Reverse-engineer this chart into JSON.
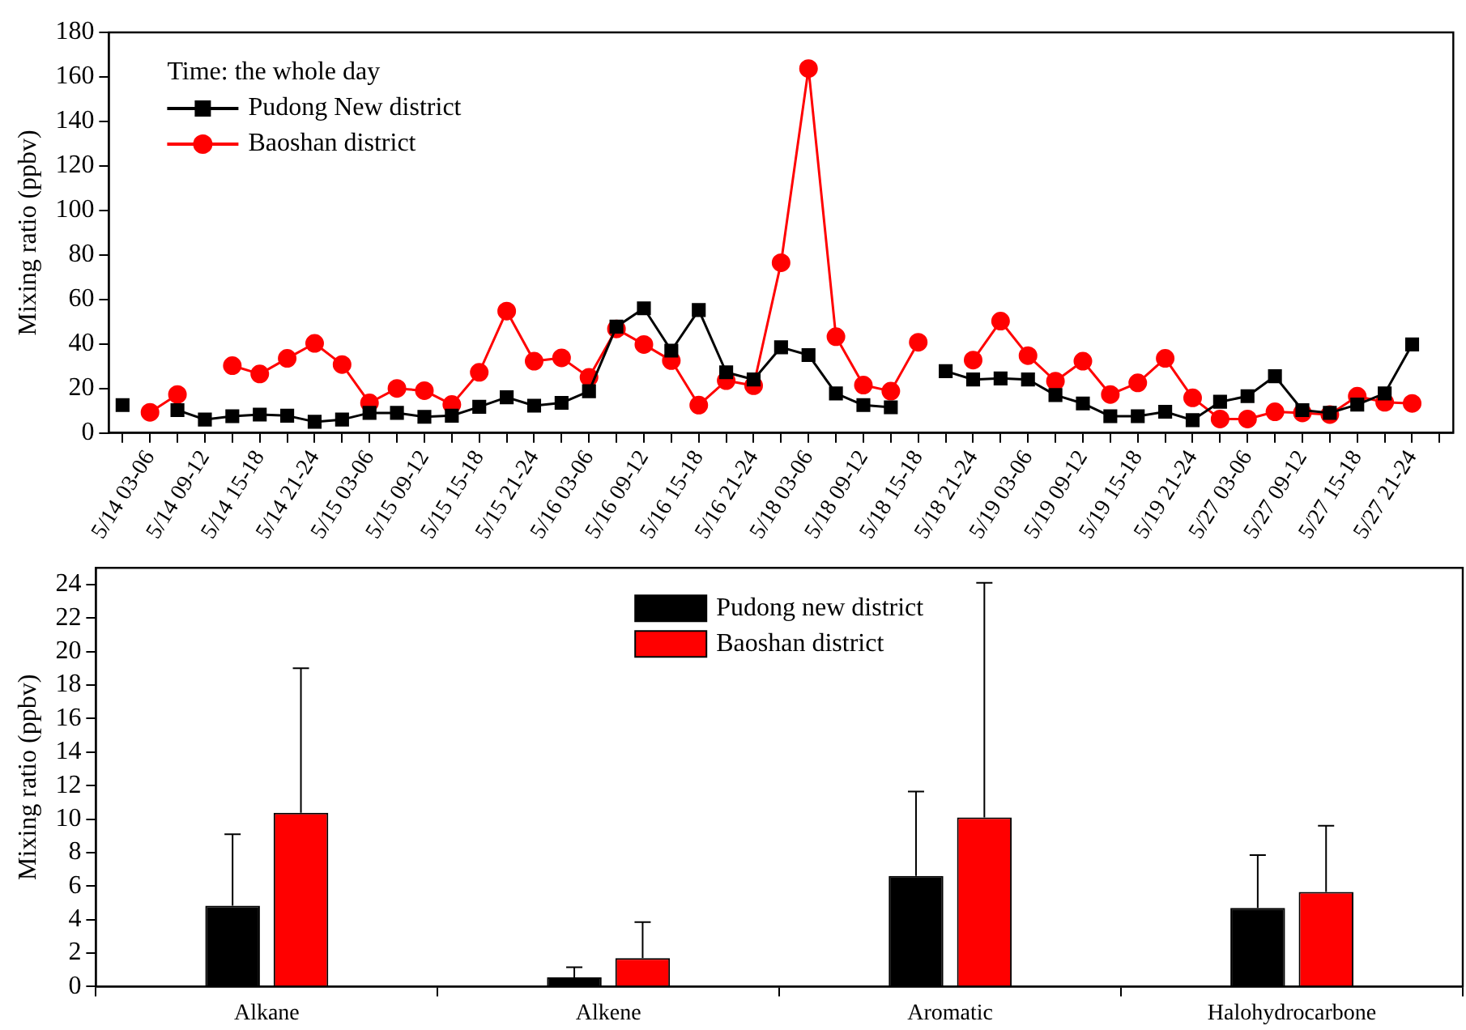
{
  "chart_data": [
    {
      "type": "line",
      "legend_title": "Time: the whole day",
      "ylabel": "Mixing ratio (ppbv)",
      "categories": [
        null,
        "5/14 03-06",
        null,
        "5/14 09-12",
        null,
        "5/14 15-18",
        null,
        "5/14 21-24",
        null,
        "5/15 03-06",
        null,
        "5/15 09-12",
        null,
        "5/15 15-18",
        null,
        "5/15 21-24",
        null,
        "5/16 03-06",
        null,
        "5/16 09-12",
        null,
        "5/16 15-18",
        null,
        "5/16 21-24",
        null,
        "5/18 03-06",
        null,
        "5/18 09-12",
        null,
        "5/18 15-18",
        null,
        "5/18 21-24",
        null,
        "5/19 03-06",
        null,
        "5/19 09-12",
        null,
        "5/19 15-18",
        null,
        "5/19 21-24",
        null,
        "5/27 03-06",
        null,
        "5/27 09-12",
        null,
        "5/27 15-18",
        null,
        "5/27 21-24",
        null
      ],
      "series": [
        {
          "name": "Pudong New district",
          "color": "#000000",
          "marker": "square",
          "values": [
            12.5,
            null,
            10.25,
            6,
            7.5,
            8.25,
            7.75,
            5,
            6,
            9,
            9,
            7.25,
            7.75,
            11.75,
            16,
            12.25,
            13.5,
            18.75,
            47.75,
            56,
            37,
            55.25,
            27.25,
            24,
            38.5,
            35,
            17.75,
            12.5,
            11.5,
            null,
            27.75,
            24,
            24.5,
            24,
            17,
            13.25,
            7.5,
            7.5,
            9.5,
            5.75,
            14,
            16.5,
            25.5,
            10.25,
            9,
            12.75,
            17.75,
            39.75,
            null
          ]
        },
        {
          "name": "Baoshan district",
          "color": "#ff0000",
          "marker": "circle",
          "values": [
            null,
            9.25,
            17.25,
            null,
            30.25,
            26.5,
            33.5,
            40.25,
            30.75,
            13.5,
            20,
            19,
            12.75,
            27.25,
            54.75,
            32.25,
            33.75,
            25,
            46.75,
            39.75,
            32.5,
            12.5,
            23.5,
            21.25,
            76.5,
            163.75,
            43.25,
            21.5,
            18.75,
            40.75,
            null,
            32.75,
            50.25,
            34.75,
            23.25,
            32.25,
            17.25,
            22.5,
            33.5,
            15.75,
            6.25,
            6.25,
            9.5,
            9,
            8.25,
            16.5,
            13.75,
            13.25,
            null
          ]
        }
      ],
      "ylim": [
        0,
        180
      ],
      "yticks": [
        0,
        20,
        40,
        60,
        80,
        100,
        120,
        140,
        160,
        180
      ],
      "grid": false,
      "legend": "top left",
      "line_style": "solid"
    },
    {
      "type": "bar",
      "ylabel": "Mixing ratio (ppbv)",
      "categories": [
        "Alkane",
        "Alkene",
        "Aromatic",
        "Halohydrocarbone"
      ],
      "series": [
        {
          "name": "Pudong new district",
          "color": "#000000",
          "values": [
            4.83,
            0.55,
            6.6,
            4.7
          ],
          "errors": [
            [
              4.83,
              9.1
            ],
            [
              0.55,
              1.15
            ],
            [
              6.6,
              11.65
            ],
            [
              4.7,
              7.85
            ]
          ]
        },
        {
          "name": "Baoshan district",
          "color": "#ff0000",
          "values": [
            10.38,
            1.7,
            10.1,
            5.65
          ],
          "errors": [
            [
              10.38,
              19.0
            ],
            [
              1.7,
              3.85
            ],
            [
              10.1,
              24.1
            ],
            [
              5.65,
              9.6
            ]
          ]
        }
      ],
      "ylim": [
        0,
        25
      ],
      "yticks": [
        0,
        2,
        4,
        6,
        8,
        10,
        12,
        14,
        16,
        18,
        20,
        22,
        24
      ],
      "grid": false,
      "legend": "top"
    }
  ]
}
